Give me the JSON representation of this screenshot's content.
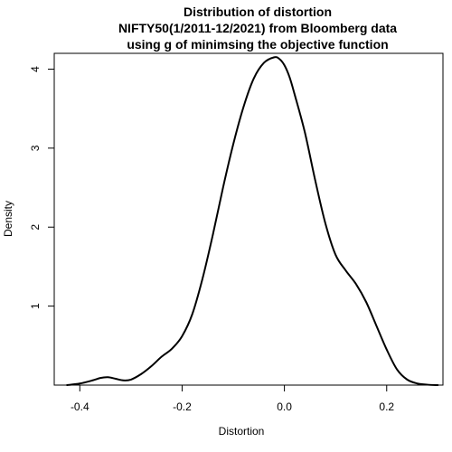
{
  "chart_data": {
    "type": "line",
    "title_lines": [
      "Distribution of distortion",
      "NIFTY50(1/2011-12/2021) from Bloomberg data",
      "using g of minimsing the objective function"
    ],
    "xlabel": "Distortion",
    "ylabel": "Density",
    "xlim": [
      -0.45,
      0.31
    ],
    "ylim": [
      0,
      4.2
    ],
    "x_ticks": [
      -0.4,
      -0.2,
      0.0,
      0.2
    ],
    "x_tick_labels": [
      "-0.4",
      "-0.2",
      "0.0",
      "0.2"
    ],
    "y_ticks": [
      1,
      2,
      3,
      4
    ],
    "y_tick_labels": [
      "1",
      "2",
      "3",
      "4"
    ],
    "grid": false,
    "legend": "none",
    "line_color": "#000000",
    "series": [
      {
        "x": [
          -0.425,
          -0.4,
          -0.375,
          -0.36,
          -0.345,
          -0.33,
          -0.315,
          -0.3,
          -0.28,
          -0.26,
          -0.24,
          -0.22,
          -0.2,
          -0.18,
          -0.16,
          -0.14,
          -0.12,
          -0.1,
          -0.08,
          -0.06,
          -0.04,
          -0.02,
          -0.01,
          0.0,
          0.01,
          0.02,
          0.04,
          0.06,
          0.08,
          0.1,
          0.12,
          0.14,
          0.16,
          0.18,
          0.2,
          0.22,
          0.24,
          0.26,
          0.28,
          0.3
        ],
        "y": [
          0.0,
          0.02,
          0.06,
          0.09,
          0.1,
          0.08,
          0.06,
          0.07,
          0.14,
          0.24,
          0.36,
          0.46,
          0.62,
          0.9,
          1.35,
          1.9,
          2.5,
          3.05,
          3.52,
          3.88,
          4.08,
          4.15,
          4.13,
          4.05,
          3.9,
          3.68,
          3.2,
          2.6,
          2.05,
          1.65,
          1.45,
          1.28,
          1.05,
          0.75,
          0.45,
          0.2,
          0.07,
          0.02,
          0.005,
          0.0
        ]
      }
    ]
  }
}
